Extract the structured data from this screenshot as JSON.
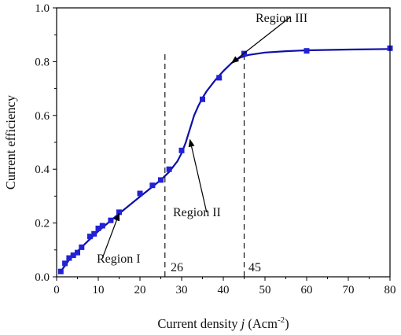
{
  "chart_data": {
    "type": "scatter",
    "x_label": {
      "prefix": "Current density ",
      "variable": "j",
      "unit_open": " (Acm",
      "unit_exp": "-2",
      "unit_close": ")"
    },
    "y_label": "Current efficiency",
    "x_range": [
      0,
      80
    ],
    "y_range": [
      0.0,
      1.0
    ],
    "x_ticks": [
      "0",
      "10",
      "20",
      "30",
      "40",
      "50",
      "60",
      "70",
      "80"
    ],
    "y_ticks": [
      "0.0",
      "0.2",
      "0.4",
      "0.6",
      "0.8",
      "1.0"
    ],
    "grid": false,
    "series": [
      {
        "marker": "square",
        "color": "#2121d6",
        "fit_color": "#0e0ea8",
        "points": [
          [
            1,
            0.02
          ],
          [
            2,
            0.05
          ],
          [
            3,
            0.07
          ],
          [
            4,
            0.08
          ],
          [
            5,
            0.09
          ],
          [
            6,
            0.11
          ],
          [
            8,
            0.15
          ],
          [
            9,
            0.16
          ],
          [
            10,
            0.18
          ],
          [
            11,
            0.19
          ],
          [
            13,
            0.21
          ],
          [
            15,
            0.24
          ],
          [
            20,
            0.31
          ],
          [
            23,
            0.34
          ],
          [
            25,
            0.36
          ],
          [
            27,
            0.4
          ],
          [
            30,
            0.47
          ],
          [
            35,
            0.66
          ],
          [
            39,
            0.74
          ],
          [
            45,
            0.83
          ],
          [
            60,
            0.84
          ],
          [
            80,
            0.85
          ]
        ],
        "fit_curve": [
          [
            1,
            0.02
          ],
          [
            3,
            0.063
          ],
          [
            5,
            0.095
          ],
          [
            8,
            0.14
          ],
          [
            10,
            0.17
          ],
          [
            15,
            0.235
          ],
          [
            20,
            0.298
          ],
          [
            25,
            0.36
          ],
          [
            27,
            0.39
          ],
          [
            28,
            0.41
          ],
          [
            29,
            0.43
          ],
          [
            30,
            0.46
          ],
          [
            31,
            0.5
          ],
          [
            32,
            0.55
          ],
          [
            33,
            0.6
          ],
          [
            34,
            0.635
          ],
          [
            35,
            0.665
          ],
          [
            36,
            0.69
          ],
          [
            38,
            0.73
          ],
          [
            40,
            0.765
          ],
          [
            42,
            0.795
          ],
          [
            44,
            0.815
          ],
          [
            46,
            0.825
          ],
          [
            50,
            0.834
          ],
          [
            55,
            0.839
          ],
          [
            60,
            0.842
          ],
          [
            70,
            0.845
          ],
          [
            80,
            0.847
          ]
        ]
      }
    ],
    "reference_lines": [
      {
        "x": 26,
        "label": "26"
      },
      {
        "x": 45,
        "label": "45"
      }
    ],
    "annotations": [
      {
        "id": "region-1",
        "text": "Region I",
        "arrow_to": [
          15,
          0.235
        ],
        "label_at": [
          11,
          0.07
        ]
      },
      {
        "id": "region-2",
        "text": "Region II",
        "arrow_to": [
          32,
          0.51
        ],
        "label_at": [
          36,
          0.24
        ]
      },
      {
        "id": "region-3",
        "text": "Region III",
        "arrow_to": [
          42,
          0.795
        ],
        "label_at": [
          56,
          0.965
        ]
      }
    ]
  }
}
